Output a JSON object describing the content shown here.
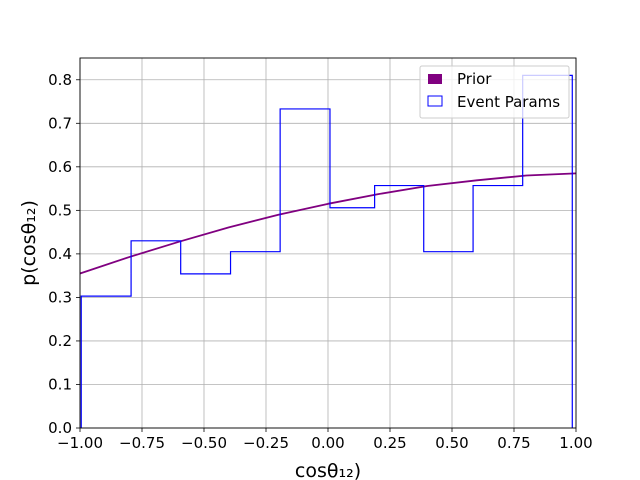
{
  "chart_data": {
    "type": "histogram+line",
    "title": "",
    "xlabel": "cosθ₁₂)",
    "ylabel": "p(cosθ₁₂)",
    "xlim": [
      -1.0,
      1.0
    ],
    "ylim": [
      0.0,
      0.85
    ],
    "xticks": [
      -1.0,
      -0.75,
      -0.5,
      -0.25,
      0.0,
      0.25,
      0.5,
      0.75,
      1.0
    ],
    "xtick_labels": [
      "−1.00",
      "−0.75",
      "−0.50",
      "−0.25",
      "0.00",
      "0.25",
      "0.50",
      "0.75",
      "1.00"
    ],
    "yticks": [
      0.0,
      0.1,
      0.2,
      0.3,
      0.4,
      0.5,
      0.6,
      0.7,
      0.8
    ],
    "ytick_labels": [
      "0.0",
      "0.1",
      "0.2",
      "0.3",
      "0.4",
      "0.5",
      "0.6",
      "0.7",
      "0.8"
    ],
    "grid": true,
    "legend_position": "top-right",
    "series": [
      {
        "name": "Prior",
        "kind": "line",
        "color": "#800080",
        "x": [
          -1.0,
          -0.8,
          -0.6,
          -0.4,
          -0.2,
          0.0,
          0.2,
          0.4,
          0.6,
          0.8,
          1.0
        ],
        "y": [
          0.355,
          0.393,
          0.428,
          0.461,
          0.49,
          0.515,
          0.537,
          0.556,
          0.569,
          0.58,
          0.585
        ]
      },
      {
        "name": "Event Params",
        "kind": "step-histogram",
        "color": "#0000ff",
        "bin_edges": [
          -0.995,
          -0.794,
          -0.594,
          -0.393,
          -0.193,
          0.008,
          0.188,
          0.386,
          0.585,
          0.785,
          0.985
        ],
        "values": [
          0.303,
          0.43,
          0.354,
          0.405,
          0.733,
          0.506,
          0.557,
          0.405,
          0.557,
          0.81
        ]
      }
    ]
  }
}
